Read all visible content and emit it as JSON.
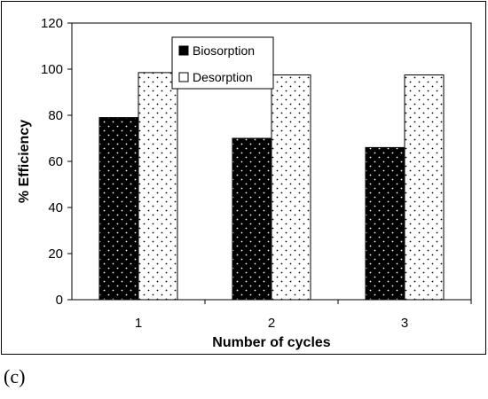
{
  "panel_label": "(c)",
  "chart_data": {
    "type": "bar",
    "title": "",
    "xlabel": "Number of cycles",
    "ylabel": "% Efficiency",
    "categories": [
      "1",
      "2",
      "3"
    ],
    "ylim": [
      0,
      120
    ],
    "yticks": [
      0,
      20,
      40,
      60,
      80,
      100,
      120
    ],
    "grid": false,
    "legend_position": "top-center",
    "series": [
      {
        "name": "Biosorption",
        "values": [
          79,
          70,
          66
        ],
        "fill": "#000000",
        "dots": "#ffffff"
      },
      {
        "name": "Desorption",
        "values": [
          98.5,
          97.5,
          97.5
        ],
        "fill": "#ffffff",
        "dots": "#000000"
      }
    ]
  }
}
